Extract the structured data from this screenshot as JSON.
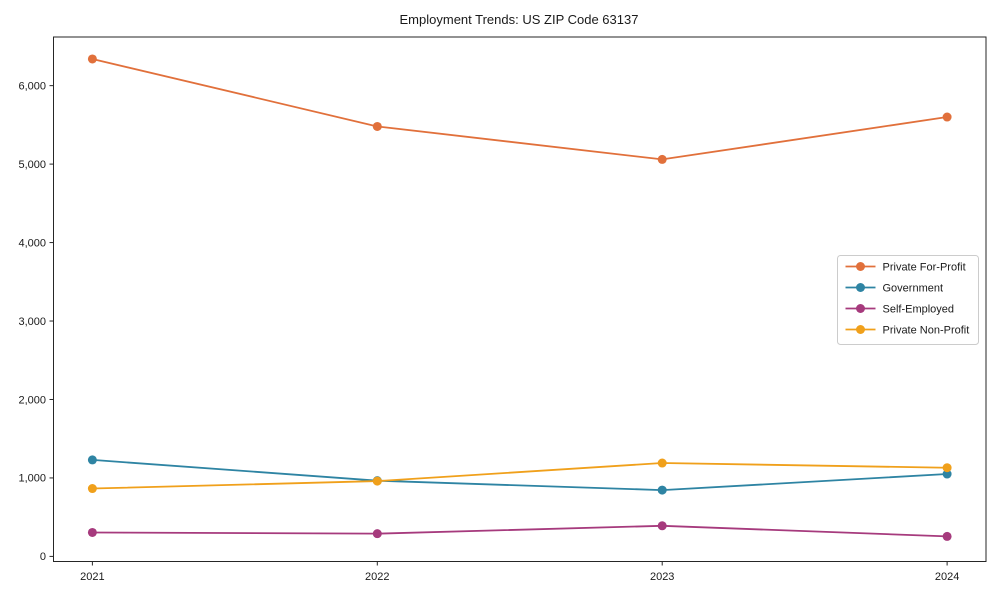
{
  "chart_data": {
    "type": "line",
    "title": "Employment Trends: US ZIP Code 63137",
    "xlabel": "",
    "ylabel": "",
    "categories": [
      "2021",
      "2022",
      "2023",
      "2024"
    ],
    "series": [
      {
        "name": "Private For-Profit",
        "color": "#e1703b",
        "values": [
          6340,
          5480,
          5060,
          5600
        ]
      },
      {
        "name": "Government",
        "color": "#2e84a3",
        "values": [
          1230,
          965,
          845,
          1050
        ]
      },
      {
        "name": "Self-Employed",
        "color": "#a63a7d",
        "values": [
          305,
          290,
          390,
          255
        ]
      },
      {
        "name": "Private Non-Profit",
        "color": "#f0a01b",
        "values": [
          865,
          960,
          1190,
          1130
        ]
      }
    ],
    "y_ticks": [
      0,
      1000,
      2000,
      3000,
      4000,
      5000,
      6000
    ],
    "y_tick_labels": [
      "0",
      "1,000",
      "2,000",
      "3,000",
      "4,000",
      "5,000",
      "6,000"
    ],
    "ylim": [
      -65,
      6620
    ],
    "x_margin_fraction": 0.0455,
    "grid": false,
    "legend_position": "middle-right",
    "frame_color": "#262626",
    "text_color": "#1a1a1a",
    "legend_border_color": "#cccccc",
    "background_color": "#ffffff"
  }
}
